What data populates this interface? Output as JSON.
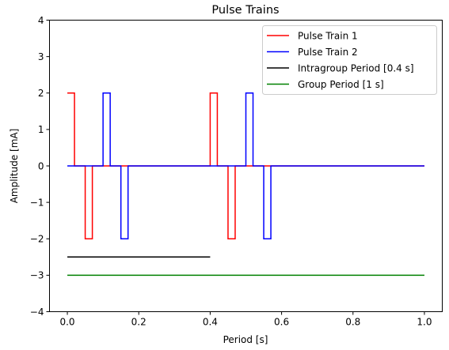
{
  "chart_data": {
    "type": "line",
    "title": "Pulse Trains",
    "xlabel": "Period [s]",
    "ylabel": "Amplitude [mA]",
    "xlim": [
      -0.05,
      1.05
    ],
    "ylim": [
      -4,
      4
    ],
    "xticks": [
      0.0,
      0.2,
      0.4,
      0.6,
      0.8,
      1.0
    ],
    "xtick_labels": [
      "0.0",
      "0.2",
      "0.4",
      "0.6",
      "0.8",
      "1.0"
    ],
    "yticks": [
      -4,
      -3,
      -2,
      -1,
      0,
      1,
      2,
      3,
      4
    ],
    "ytick_labels": [
      "−4",
      "−3",
      "−2",
      "−1",
      "0",
      "1",
      "2",
      "3",
      "4"
    ],
    "grid": false,
    "legend_position": "top-right",
    "series": [
      {
        "name": "Pulse Train 1",
        "color": "#ff0000",
        "x": [
          0,
          0.02,
          0.02,
          0.05,
          0.05,
          0.07,
          0.07,
          0.4,
          0.4,
          0.42,
          0.42,
          0.45,
          0.45,
          0.47,
          0.47,
          1.0
        ],
        "y": [
          2,
          2,
          0,
          0,
          -2,
          -2,
          0,
          0,
          2,
          2,
          0,
          0,
          -2,
          -2,
          0,
          0
        ]
      },
      {
        "name": "Pulse Train 2",
        "color": "#0000ff",
        "x": [
          0,
          0.1,
          0.1,
          0.12,
          0.12,
          0.15,
          0.15,
          0.17,
          0.17,
          0.5,
          0.5,
          0.52,
          0.52,
          0.55,
          0.55,
          0.57,
          0.57,
          1.0
        ],
        "y": [
          0,
          0,
          2,
          2,
          0,
          0,
          -2,
          -2,
          0,
          0,
          2,
          2,
          0,
          0,
          -2,
          -2,
          0,
          0
        ]
      },
      {
        "name": "Intragroup Period [0.4 s]",
        "color": "#000000",
        "x": [
          0,
          0.4
        ],
        "y": [
          -2.5,
          -2.5
        ]
      },
      {
        "name": "Group Period [1 s]",
        "color": "#008000",
        "x": [
          0,
          1.0
        ],
        "y": [
          -3,
          -3
        ]
      }
    ]
  }
}
